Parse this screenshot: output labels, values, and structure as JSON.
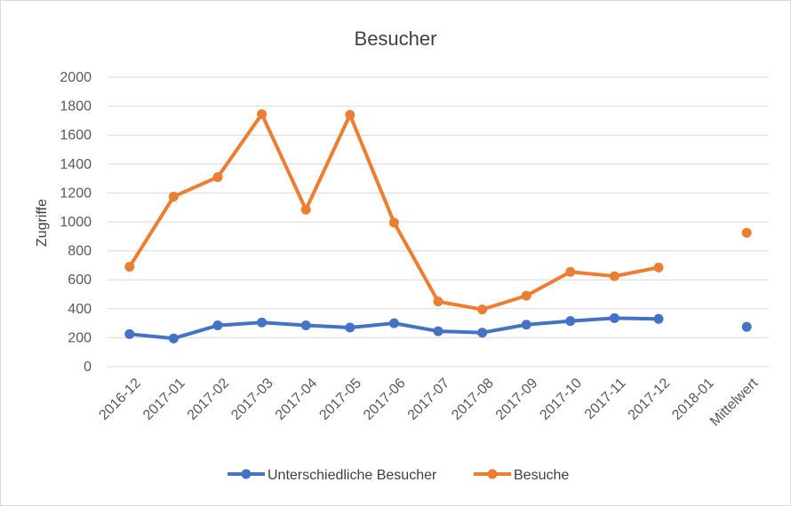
{
  "chart_data": {
    "type": "line",
    "title": "Besucher",
    "xlabel": "",
    "ylabel": "Zugriffe",
    "ylim": [
      0,
      2000
    ],
    "yticks": [
      0,
      200,
      400,
      600,
      800,
      1000,
      1200,
      1400,
      1600,
      1800,
      2000
    ],
    "grid": true,
    "legend_position": "bottom",
    "categories": [
      "2016-12",
      "2017-01",
      "2017-02",
      "2017-03",
      "2017-04",
      "2017-05",
      "2017-06",
      "2017-07",
      "2017-08",
      "2017-09",
      "2017-10",
      "2017-11",
      "2017-12",
      "2018-01",
      "Mittelwert"
    ],
    "series": [
      {
        "name": "Unterschiedliche Besucher",
        "color": "#4472c4",
        "values": [
          225,
          195,
          285,
          305,
          285,
          270,
          300,
          245,
          235,
          290,
          315,
          335,
          330,
          null,
          275
        ]
      },
      {
        "name": "Besuche",
        "color": "#ed7d31",
        "values": [
          690,
          1175,
          1310,
          1745,
          1085,
          1740,
          995,
          450,
          395,
          490,
          655,
          625,
          685,
          null,
          925
        ]
      }
    ]
  }
}
